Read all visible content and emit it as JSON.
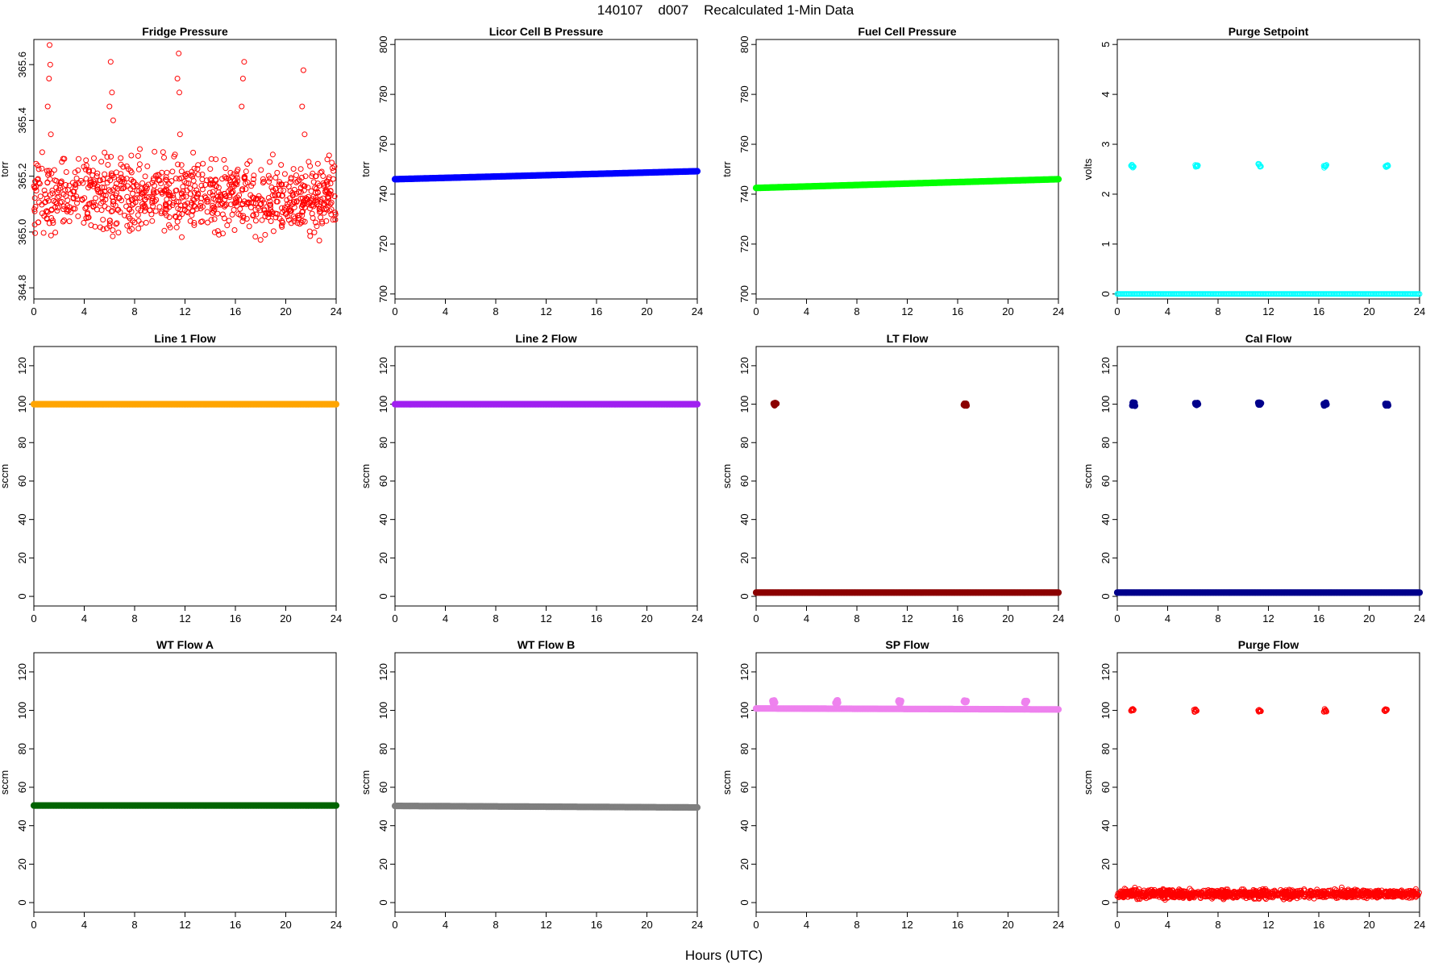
{
  "figure": {
    "title": "140107    d007    Recalculated 1-Min Data",
    "xlabel": "Hours (UTC)"
  },
  "chart_data": [
    {
      "type": "scatter",
      "title": "Fridge Pressure",
      "ylabel": "torr",
      "color": "#ff0000",
      "marker": "open",
      "xlim": [
        0,
        24
      ],
      "ylim": [
        364.76,
        365.69
      ],
      "x_ticks": [
        0,
        4,
        8,
        12,
        16,
        20,
        24
      ],
      "y_ticks": [
        364.8,
        365.0,
        365.2,
        365.4,
        365.6
      ],
      "y_tick_labels": [
        "364.8",
        "365.0",
        "365.2",
        "365.4",
        "365.6"
      ],
      "series": [
        {
          "name": "baseline",
          "kind": "noise",
          "x_start": 0,
          "x_end": 24,
          "count": 900,
          "center": 365.13,
          "spread": 0.09
        },
        {
          "name": "spikes",
          "kind": "points",
          "x": [
            1.1,
            1.2,
            1.25,
            1.3,
            1.35,
            6.0,
            6.1,
            6.2,
            6.3,
            11.4,
            11.5,
            11.55,
            11.6,
            16.5,
            16.6,
            16.7,
            21.3,
            21.4,
            21.5
          ],
          "y": [
            365.45,
            365.55,
            365.67,
            365.6,
            365.35,
            365.45,
            365.61,
            365.5,
            365.4,
            365.55,
            365.64,
            365.5,
            365.35,
            365.45,
            365.55,
            365.61,
            365.45,
            365.58,
            365.35
          ]
        }
      ]
    },
    {
      "type": "scatter",
      "title": "Licor Cell B Pressure",
      "ylabel": "torr",
      "color": "#0000ff",
      "marker": "filled",
      "xlim": [
        0,
        24
      ],
      "ylim": [
        698,
        802
      ],
      "x_ticks": [
        0,
        4,
        8,
        12,
        16,
        20,
        24
      ],
      "y_ticks": [
        700,
        720,
        740,
        760,
        780,
        800
      ],
      "y_tick_labels": [
        "700",
        "720",
        "740",
        "760",
        "780",
        "800"
      ],
      "series": [
        {
          "name": "trend",
          "kind": "line",
          "x": [
            0,
            24
          ],
          "y": [
            746.0,
            749.2
          ]
        }
      ]
    },
    {
      "type": "scatter",
      "title": "Fuel Cell Pressure",
      "ylabel": "torr",
      "color": "#00ff00",
      "marker": "filled",
      "xlim": [
        0,
        24
      ],
      "ylim": [
        698,
        802
      ],
      "x_ticks": [
        0,
        4,
        8,
        12,
        16,
        20,
        24
      ],
      "y_ticks": [
        700,
        720,
        740,
        760,
        780,
        800
      ],
      "y_tick_labels": [
        "700",
        "720",
        "740",
        "760",
        "780",
        "800"
      ],
      "series": [
        {
          "name": "trend",
          "kind": "line",
          "x": [
            0,
            24
          ],
          "y": [
            742.5,
            746.0
          ]
        }
      ]
    },
    {
      "type": "scatter",
      "title": "Purge Setpoint",
      "ylabel": "volts",
      "color": "#00ffff",
      "marker": "open",
      "xlim": [
        0,
        24
      ],
      "ylim": [
        -0.1,
        5.1
      ],
      "x_ticks": [
        0,
        4,
        8,
        12,
        16,
        20,
        24
      ],
      "y_ticks": [
        0,
        1,
        2,
        3,
        4,
        5
      ],
      "y_tick_labels": [
        "0",
        "1",
        "2",
        "3",
        "4",
        "5"
      ],
      "series": [
        {
          "name": "off",
          "kind": "line",
          "x": [
            0,
            24
          ],
          "y": [
            0,
            0
          ]
        },
        {
          "name": "purge events",
          "kind": "clusters",
          "x": [
            1.2,
            6.3,
            11.3,
            16.5,
            21.4
          ],
          "y": [
            2.56,
            2.56,
            2.58,
            2.56,
            2.56
          ]
        }
      ]
    },
    {
      "type": "scatter",
      "title": "Line 1 Flow",
      "ylabel": "sccm",
      "color": "#ffa500",
      "marker": "filled",
      "xlim": [
        0,
        24
      ],
      "ylim": [
        -5,
        130
      ],
      "x_ticks": [
        0,
        4,
        8,
        12,
        16,
        20,
        24
      ],
      "y_ticks": [
        0,
        20,
        40,
        60,
        80,
        100,
        120
      ],
      "y_tick_labels": [
        "0",
        "20",
        "40",
        "60",
        "80",
        "100",
        "120"
      ],
      "series": [
        {
          "name": "flow",
          "kind": "line",
          "x": [
            0,
            24
          ],
          "y": [
            100,
            100
          ]
        }
      ]
    },
    {
      "type": "scatter",
      "title": "Line 2 Flow",
      "ylabel": "sccm",
      "color": "#a020f0",
      "marker": "filled",
      "xlim": [
        0,
        24
      ],
      "ylim": [
        -5,
        130
      ],
      "x_ticks": [
        0,
        4,
        8,
        12,
        16,
        20,
        24
      ],
      "y_ticks": [
        0,
        20,
        40,
        60,
        80,
        100,
        120
      ],
      "y_tick_labels": [
        "0",
        "20",
        "40",
        "60",
        "80",
        "100",
        "120"
      ],
      "series": [
        {
          "name": "flow",
          "kind": "line",
          "x": [
            0,
            24
          ],
          "y": [
            100,
            100
          ]
        }
      ]
    },
    {
      "type": "scatter",
      "title": "LT Flow",
      "ylabel": "sccm",
      "color": "#8b0000",
      "marker": "filled",
      "xlim": [
        0,
        24
      ],
      "ylim": [
        -5,
        130
      ],
      "x_ticks": [
        0,
        4,
        8,
        12,
        16,
        20,
        24
      ],
      "y_ticks": [
        0,
        20,
        40,
        60,
        80,
        100,
        120
      ],
      "y_tick_labels": [
        "0",
        "20",
        "40",
        "60",
        "80",
        "100",
        "120"
      ],
      "series": [
        {
          "name": "baseline",
          "kind": "line",
          "x": [
            0,
            24
          ],
          "y": [
            2,
            2
          ]
        },
        {
          "name": "events",
          "kind": "clusters",
          "x": [
            1.5,
            16.6
          ],
          "y": [
            100,
            100
          ]
        }
      ]
    },
    {
      "type": "scatter",
      "title": "Cal Flow",
      "ylabel": "sccm",
      "color": "#00008b",
      "marker": "filled",
      "xlim": [
        0,
        24
      ],
      "ylim": [
        -5,
        130
      ],
      "x_ticks": [
        0,
        4,
        8,
        12,
        16,
        20,
        24
      ],
      "y_ticks": [
        0,
        20,
        40,
        60,
        80,
        100,
        120
      ],
      "y_tick_labels": [
        "0",
        "20",
        "40",
        "60",
        "80",
        "100",
        "120"
      ],
      "series": [
        {
          "name": "baseline",
          "kind": "line",
          "x": [
            0,
            24
          ],
          "y": [
            2,
            2
          ]
        },
        {
          "name": "cal events",
          "kind": "clusters",
          "x": [
            1.3,
            6.3,
            11.3,
            16.5,
            21.4
          ],
          "y": [
            100,
            100,
            100,
            100,
            100
          ]
        }
      ]
    },
    {
      "type": "scatter",
      "title": "WT Flow A",
      "ylabel": "sccm",
      "color": "#006400",
      "marker": "filled",
      "xlim": [
        0,
        24
      ],
      "ylim": [
        -5,
        130
      ],
      "x_ticks": [
        0,
        4,
        8,
        12,
        16,
        20,
        24
      ],
      "y_ticks": [
        0,
        20,
        40,
        60,
        80,
        100,
        120
      ],
      "y_tick_labels": [
        "0",
        "20",
        "40",
        "60",
        "80",
        "100",
        "120"
      ],
      "series": [
        {
          "name": "flow",
          "kind": "line",
          "x": [
            0,
            24
          ],
          "y": [
            50.5,
            50.5
          ]
        }
      ]
    },
    {
      "type": "scatter",
      "title": "WT Flow B",
      "ylabel": "sccm",
      "color": "#7f7f7f",
      "marker": "filled",
      "xlim": [
        0,
        24
      ],
      "ylim": [
        -5,
        130
      ],
      "x_ticks": [
        0,
        4,
        8,
        12,
        16,
        20,
        24
      ],
      "y_ticks": [
        0,
        20,
        40,
        60,
        80,
        100,
        120
      ],
      "y_tick_labels": [
        "0",
        "20",
        "40",
        "60",
        "80",
        "100",
        "120"
      ],
      "series": [
        {
          "name": "flow",
          "kind": "line",
          "x": [
            0,
            24
          ],
          "y": [
            50.3,
            49.5
          ]
        }
      ]
    },
    {
      "type": "scatter",
      "title": "SP Flow",
      "ylabel": "sccm",
      "color": "#ee82ee",
      "marker": "filled",
      "xlim": [
        0,
        24
      ],
      "ylim": [
        -5,
        130
      ],
      "x_ticks": [
        0,
        4,
        8,
        12,
        16,
        20,
        24
      ],
      "y_ticks": [
        0,
        20,
        40,
        60,
        80,
        100,
        120
      ],
      "y_tick_labels": [
        "0",
        "20",
        "40",
        "60",
        "80",
        "100",
        "120"
      ],
      "series": [
        {
          "name": "flow",
          "kind": "line",
          "x": [
            0,
            24
          ],
          "y": [
            101,
            100.5
          ]
        },
        {
          "name": "bumps",
          "kind": "clusters",
          "x": [
            1.4,
            6.4,
            11.4,
            16.6,
            21.4
          ],
          "y": [
            104.5,
            104.5,
            104.5,
            104.5,
            104.5
          ]
        }
      ]
    },
    {
      "type": "scatter",
      "title": "Purge Flow",
      "ylabel": "sccm",
      "color": "#ff0000",
      "marker": "open",
      "xlim": [
        0,
        24
      ],
      "ylim": [
        -5,
        130
      ],
      "x_ticks": [
        0,
        4,
        8,
        12,
        16,
        20,
        24
      ],
      "y_ticks": [
        0,
        20,
        40,
        60,
        80,
        100,
        120
      ],
      "y_tick_labels": [
        "0",
        "20",
        "40",
        "60",
        "80",
        "100",
        "120"
      ],
      "series": [
        {
          "name": "baseline",
          "kind": "noise",
          "x_start": 0,
          "x_end": 24,
          "count": 1100,
          "center": 4.5,
          "spread": 1.6
        },
        {
          "name": "purge events",
          "kind": "clusters",
          "x": [
            1.2,
            6.2,
            11.3,
            16.5,
            21.3
          ],
          "y": [
            100,
            99.8,
            100,
            100,
            100
          ]
        }
      ]
    }
  ]
}
